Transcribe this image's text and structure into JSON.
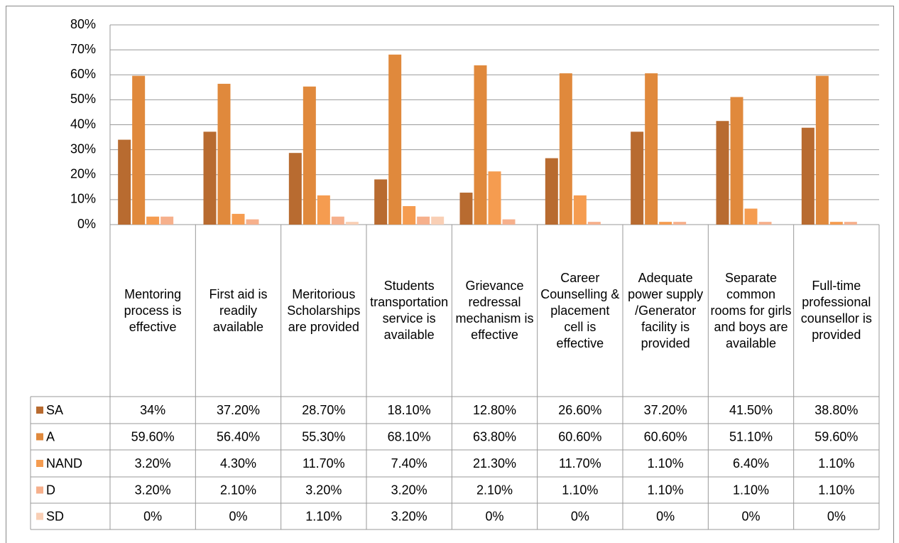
{
  "chart_data": {
    "type": "bar",
    "categories": [
      "Mentoring process is effective",
      "First aid is readily available",
      "Meritorious Scholarships are provided",
      "Students transportation service is available",
      "Grievance redressal mechanism is effective",
      "Career Counselling & placement cell is effective",
      "Adequate power supply /Generator facility is provided",
      "Separate common rooms for girls and boys are available",
      "Full-time professional counsellor is provided"
    ],
    "series": [
      {
        "name": "SA",
        "color": "#b86b30",
        "values": [
          34,
          37.2,
          28.7,
          18.1,
          12.8,
          26.6,
          37.2,
          41.5,
          38.8
        ],
        "value_labels": [
          "34%",
          "37.20%",
          "28.70%",
          "18.10%",
          "12.80%",
          "26.60%",
          "37.20%",
          "41.50%",
          "38.80%"
        ]
      },
      {
        "name": "A",
        "color": "#e0893c",
        "values": [
          59.6,
          56.4,
          55.3,
          68.1,
          63.8,
          60.6,
          60.6,
          51.1,
          59.6
        ],
        "value_labels": [
          "59.60%",
          "56.40%",
          "55.30%",
          "68.10%",
          "63.80%",
          "60.60%",
          "60.60%",
          "51.10%",
          "59.60%"
        ]
      },
      {
        "name": "NAND",
        "color": "#f59c50",
        "values": [
          3.2,
          4.3,
          11.7,
          7.4,
          21.3,
          11.7,
          1.1,
          6.4,
          1.1
        ],
        "value_labels": [
          "3.20%",
          "4.30%",
          "11.70%",
          "7.40%",
          "21.30%",
          "11.70%",
          "1.10%",
          "6.40%",
          "1.10%"
        ]
      },
      {
        "name": "D",
        "color": "#f6b08c",
        "values": [
          3.2,
          2.1,
          3.2,
          3.2,
          2.1,
          1.1,
          1.1,
          1.1,
          1.1
        ],
        "value_labels": [
          "3.20%",
          "2.10%",
          "3.20%",
          "3.20%",
          "2.10%",
          "1.10%",
          "1.10%",
          "1.10%",
          "1.10%"
        ]
      },
      {
        "name": "SD",
        "color": "#f9cfb5",
        "values": [
          0,
          0,
          1.1,
          3.2,
          0,
          0,
          0,
          0,
          0
        ],
        "value_labels": [
          "0%",
          "0%",
          "1.10%",
          "3.20%",
          "0%",
          "0%",
          "0%",
          "0%",
          "0%"
        ]
      }
    ],
    "ylim": [
      0,
      80
    ],
    "yticks": [
      {
        "value": 0,
        "label": "0%"
      },
      {
        "value": 10,
        "label": "10%"
      },
      {
        "value": 20,
        "label": "20%"
      },
      {
        "value": 30,
        "label": "30%"
      },
      {
        "value": 40,
        "label": "40%"
      },
      {
        "value": 50,
        "label": "50%"
      },
      {
        "value": 60,
        "label": "60%"
      },
      {
        "value": 70,
        "label": "70%"
      },
      {
        "value": 80,
        "label": "80%"
      }
    ],
    "grid": true
  }
}
